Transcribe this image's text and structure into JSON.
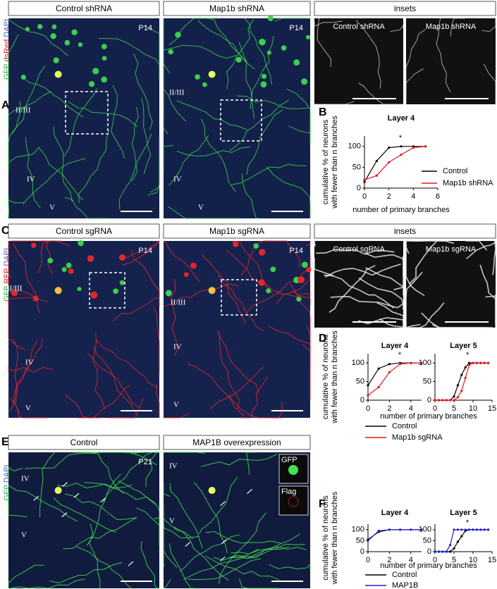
{
  "rows": [
    {
      "letter": "A",
      "stains": [
        {
          "text": "GFP",
          "color": "#22b24c"
        },
        {
          "text": "dsRed",
          "color": "#e8151b"
        },
        {
          "text": "DAPI",
          "color": "#3a5fd0"
        }
      ],
      "headers": [
        "Control shRNA",
        "Map1b shRNA",
        "insets"
      ],
      "images": [
        {
          "age": "P14",
          "layers": [
            "II/III",
            "IV",
            "V"
          ]
        },
        {
          "age": "P14",
          "layers": [
            "II/III",
            "IV",
            "V"
          ]
        }
      ],
      "insets": [
        "Control shRNA",
        "Map1b shRNA"
      ],
      "chart_letter": "B"
    },
    {
      "letter": "C",
      "stains": [
        {
          "text": "GFP",
          "color": "#22b24c"
        },
        {
          "text": "RFP",
          "color": "#e8151b"
        },
        {
          "text": "DAPI",
          "color": "#3a5fd0"
        }
      ],
      "headers": [
        "Control sgRNA",
        "Map1b sgRNA",
        "insets"
      ],
      "images": [
        {
          "age": "P14",
          "layers": [
            "II/III",
            "IV",
            "V"
          ]
        },
        {
          "age": "P14",
          "layers": [
            "II/III",
            "IV",
            "V"
          ]
        }
      ],
      "insets": [
        "Control sgRNA",
        "Map1b sgRNA"
      ],
      "chart_letter": "D"
    },
    {
      "letter": "E",
      "stains": [
        {
          "text": "GFP",
          "color": "#22b24c"
        },
        {
          "text": "DAPI",
          "color": "#3a5fd0"
        }
      ],
      "headers": [
        "Control",
        "MAP1B overexpression"
      ],
      "images": [
        {
          "age": "P21",
          "layers": [
            "IV",
            "V"
          ]
        },
        {
          "age": "P21",
          "layers": [
            "IV",
            "V"
          ]
        }
      ],
      "mini_insets": [
        "GFP",
        "Flag"
      ],
      "chart_letter": "F"
    }
  ],
  "chart_data": [
    {
      "type": "line",
      "title": "Layer 4",
      "ylabel": [
        "cumulative % of neurons",
        "with fewer than n branches"
      ],
      "xlabel": "number of primary branches",
      "x": [
        0,
        1,
        2,
        3,
        4,
        5
      ],
      "series": [
        {
          "name": "Control",
          "color": "#000000",
          "values": [
            15,
            65,
            97,
            100,
            100,
            100
          ]
        },
        {
          "name": "Map1b shRNA",
          "color": "#e8151b",
          "values": [
            20,
            30,
            62,
            80,
            97,
            100
          ]
        }
      ],
      "xlim": [
        0,
        6
      ],
      "xticks": [
        0,
        2,
        4,
        6
      ],
      "ylim": [
        0,
        125
      ],
      "yticks": [
        0,
        50,
        100
      ],
      "annotation": "*",
      "legend": true
    },
    {
      "type": "line",
      "title": "Layer 4",
      "ylabel": [
        "cumulative % of neurons",
        "with fewer than n branches"
      ],
      "xlabel": "number of primary branches",
      "x": [
        0,
        1,
        2,
        3,
        4,
        5
      ],
      "series": [
        {
          "name": "Control",
          "color": "#000000",
          "values": [
            40,
            85,
            97,
            100,
            100,
            100
          ]
        },
        {
          "name": "Map1b sgRNA",
          "color": "#e8151b",
          "values": [
            13,
            35,
            75,
            97,
            100,
            100
          ]
        }
      ],
      "xlim": [
        0,
        5
      ],
      "xticks": [
        0,
        2,
        4
      ],
      "ylim": [
        0,
        125
      ],
      "yticks": [
        0,
        50,
        100
      ],
      "annotation": "*",
      "legend": true
    },
    {
      "type": "line",
      "title": "Layer 5",
      "x": [
        0,
        1,
        2,
        3,
        4,
        5,
        6,
        7,
        8,
        9,
        10,
        11,
        12,
        13,
        14
      ],
      "series": [
        {
          "name": "Control",
          "color": "#000000",
          "values": [
            0,
            0,
            0,
            0,
            0,
            10,
            40,
            68,
            88,
            100,
            100,
            100,
            100,
            100,
            100
          ]
        },
        {
          "name": "Map1b sgRNA",
          "color": "#e8151b",
          "values": [
            0,
            0,
            0,
            0,
            0,
            0,
            8,
            25,
            60,
            95,
            100,
            100,
            100,
            100,
            100
          ]
        }
      ],
      "xlim": [
        0,
        15
      ],
      "xticks": [
        0,
        5,
        10,
        15
      ],
      "ylim": [
        0,
        125
      ],
      "yticks": [
        0,
        50,
        100
      ],
      "annotation": "*"
    },
    {
      "type": "line",
      "title": "Layer 4",
      "ylabel": [
        "cumulative % of neurons",
        "with fewer than n branches"
      ],
      "xlabel": "number of primary branches",
      "x": [
        0,
        1,
        2,
        3,
        4,
        5
      ],
      "series": [
        {
          "name": "Control",
          "color": "#000000",
          "values": [
            55,
            90,
            100,
            100,
            100,
            100
          ]
        },
        {
          "name": "MAP1B",
          "color": "#1f1fd6",
          "values": [
            50,
            95,
            100,
            100,
            100,
            100
          ]
        }
      ],
      "xlim": [
        0,
        5
      ],
      "xticks": [
        0,
        2,
        4
      ],
      "ylim": [
        0,
        125
      ],
      "yticks": [
        0,
        50,
        100
      ],
      "legend": true
    },
    {
      "type": "line",
      "title": "Layer 5",
      "x": [
        0,
        1,
        2,
        3,
        4,
        5,
        6,
        7,
        8,
        9,
        10,
        11,
        12,
        13,
        14
      ],
      "series": [
        {
          "name": "Control",
          "color": "#000000",
          "values": [
            0,
            0,
            0,
            0,
            0,
            15,
            45,
            70,
            95,
            100,
            100,
            100,
            100,
            100,
            100
          ]
        },
        {
          "name": "MAP1B",
          "color": "#1f1fd6",
          "values": [
            0,
            0,
            0,
            0,
            30,
            100,
            100,
            100,
            100,
            100,
            100,
            100,
            100,
            100,
            100
          ]
        }
      ],
      "xlim": [
        0,
        15
      ],
      "xticks": [
        0,
        5,
        10,
        15
      ],
      "ylim": [
        0,
        125
      ],
      "yticks": [
        0,
        50,
        100
      ],
      "annotation": "*"
    }
  ]
}
